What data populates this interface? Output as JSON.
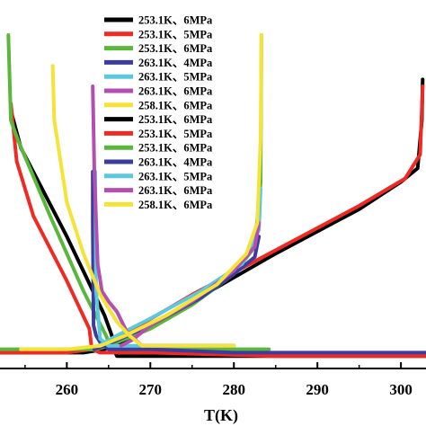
{
  "chart_data": {
    "type": "line",
    "title": "",
    "xlabel": "T(K)",
    "ylabel": "",
    "xlim": [
      252,
      303
    ],
    "ylim": [
      0,
      1
    ],
    "x_ticks": [
      "260",
      "270",
      "280",
      "290",
      "300"
    ],
    "grid": false,
    "legend_position": "top-center",
    "legend": [
      {
        "label": "253.1K、6MPa",
        "color": "#000000"
      },
      {
        "label": "253.1K、5MPa",
        "color": "#ee2a24"
      },
      {
        "label": "253.1K、6MPa",
        "color": "#5ab73c"
      },
      {
        "label": "263.1K、4MPa",
        "color": "#3c3c9e"
      },
      {
        "label": "263.1K、5MPa",
        "color": "#5cc8e0"
      },
      {
        "label": "263.1K、6MPa",
        "color": "#b24fb0"
      },
      {
        "label": "258.1K、6MPa",
        "color": "#f5e33a"
      },
      {
        "label": "253.1K、6MPa",
        "color": "#000000"
      },
      {
        "label": "253.1K、5MPa",
        "color": "#ee2a24"
      },
      {
        "label": "253.1K、6MPa",
        "color": "#5ab73c"
      },
      {
        "label": "263.1K、4MPa",
        "color": "#3c3c9e"
      },
      {
        "label": "263.1K、5MPa",
        "color": "#5cc8e0"
      },
      {
        "label": "263.1K、6MPa",
        "color": "#b24fb0"
      },
      {
        "label": "258.1K、6MPa",
        "color": "#f5e33a"
      }
    ],
    "series": [
      {
        "color": "#000000",
        "x": [
          252.0,
          255.0,
          258.5,
          262.0,
          264.5,
          265.5,
          268.0,
          275.0,
          285.0,
          295.0,
          300.0,
          302.0,
          302.5,
          302.6
        ],
        "y": [
          0.02,
          0.02,
          0.02,
          0.02,
          0.03,
          0.04,
          0.07,
          0.17,
          0.31,
          0.44,
          0.52,
          0.56,
          0.7,
          0.82
        ]
      },
      {
        "color": "#000000",
        "x": [
          253.4,
          254.5,
          260.0,
          264.5,
          265.4,
          265.6,
          266.0,
          275.0,
          290.0,
          303.0
        ],
        "y": [
          0.72,
          0.62,
          0.36,
          0.13,
          0.07,
          0.03,
          0.01,
          0.01,
          0.01,
          0.01
        ]
      },
      {
        "color": "#ee2a24",
        "x": [
          252.0,
          256.0,
          260.0,
          263.0,
          264.0,
          265.0,
          268.0,
          275.0,
          285.0,
          295.0,
          300.5,
          302.3,
          302.6
        ],
        "y": [
          0.02,
          0.02,
          0.02,
          0.03,
          0.04,
          0.05,
          0.09,
          0.19,
          0.32,
          0.45,
          0.53,
          0.6,
          0.8
        ]
      },
      {
        "color": "#ee2a24",
        "x": [
          253.3,
          254.0,
          256.0,
          260.0,
          262.7,
          263.0,
          264.0,
          270.0,
          285.0,
          303.0
        ],
        "y": [
          0.75,
          0.58,
          0.42,
          0.23,
          0.09,
          0.03,
          0.02,
          0.02,
          0.01,
          0.01
        ]
      },
      {
        "color": "#5ab73c",
        "x": [
          253.0,
          253.3,
          254.2,
          258.0,
          262.0,
          264.7,
          265.2,
          266.0,
          270.0,
          280.0,
          284.2
        ],
        "y": [
          0.95,
          0.7,
          0.64,
          0.42,
          0.2,
          0.07,
          0.04,
          0.03,
          0.03,
          0.03,
          0.03
        ]
      },
      {
        "color": "#5ab73c",
        "x": [
          252.0,
          258.0,
          263.5,
          265.0,
          270.0,
          275.0,
          280.0,
          282.5,
          283.2,
          283.3
        ],
        "y": [
          0.03,
          0.03,
          0.03,
          0.04,
          0.09,
          0.16,
          0.25,
          0.33,
          0.52,
          0.95
        ]
      },
      {
        "color": "#3c3c9e",
        "x": [
          263.1,
          263.1,
          263.2,
          263.5,
          264.0,
          264.5,
          265.0,
          270.0,
          280.0,
          303.0
        ],
        "y": [
          0.55,
          0.4,
          0.1,
          0.07,
          0.05,
          0.04,
          0.03,
          0.03,
          0.02,
          0.02
        ]
      },
      {
        "color": "#3c3c9e",
        "x": [
          263.3,
          264.5,
          270.0,
          276.0,
          280.0,
          282.5,
          283.0
        ],
        "y": [
          0.03,
          0.04,
          0.1,
          0.18,
          0.25,
          0.3,
          0.36
        ]
      },
      {
        "color": "#5cc8e0",
        "x": [
          263.4,
          263.5,
          264.0,
          265.0,
          270.0,
          280.0
        ],
        "y": [
          0.55,
          0.2,
          0.06,
          0.04,
          0.04,
          0.04
        ]
      },
      {
        "color": "#5cc8e0",
        "x": [
          263.8,
          266.0,
          270.0,
          276.0,
          281.0,
          283.0,
          283.2
        ],
        "y": [
          0.04,
          0.07,
          0.12,
          0.2,
          0.28,
          0.38,
          0.5
        ]
      },
      {
        "color": "#b24fb0",
        "x": [
          263.1,
          263.3,
          263.7,
          264.2,
          265.0,
          266.0,
          267.2,
          269.0,
          275.0,
          280.0
        ],
        "y": [
          0.8,
          0.55,
          0.28,
          0.2,
          0.17,
          0.14,
          0.08,
          0.04,
          0.04,
          0.04
        ]
      },
      {
        "color": "#b24fb0",
        "x": [
          266.5,
          268.0,
          270.0,
          275.0,
          280.0,
          282.5,
          283.0
        ],
        "y": [
          0.04,
          0.06,
          0.1,
          0.17,
          0.26,
          0.33,
          0.4
        ]
      },
      {
        "color": "#f5e33a",
        "x": [
          258.3,
          258.5,
          260.0,
          262.0,
          264.0,
          266.0,
          267.5,
          269.0,
          272.0,
          280.0
        ],
        "y": [
          0.86,
          0.7,
          0.46,
          0.31,
          0.19,
          0.11,
          0.07,
          0.04,
          0.04,
          0.04
        ]
      },
      {
        "color": "#f5e33a",
        "x": [
          254.5,
          260.0,
          264.0,
          267.0,
          272.0,
          278.0,
          281.5,
          282.8,
          283.2,
          283.3
        ],
        "y": [
          0.03,
          0.03,
          0.04,
          0.07,
          0.13,
          0.22,
          0.31,
          0.4,
          0.65,
          0.95
        ]
      }
    ]
  }
}
